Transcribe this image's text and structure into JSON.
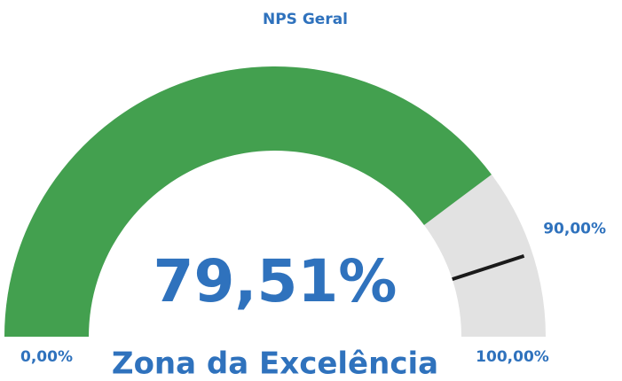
{
  "chart_data": {
    "type": "gauge",
    "title": "NPS Geral",
    "min": {
      "value": 0,
      "label": "0,00%"
    },
    "max": {
      "value": 100,
      "label": "100,00%"
    },
    "value": 79.51,
    "value_label": "79,51%",
    "target": {
      "value": 90,
      "label": "90,00%"
    },
    "annotation": "Zona da Excelência",
    "color": "#43a04f",
    "track_color": "#e2e2e2",
    "target_color": "#1a1a1a",
    "text_color": "#2f72bd"
  }
}
